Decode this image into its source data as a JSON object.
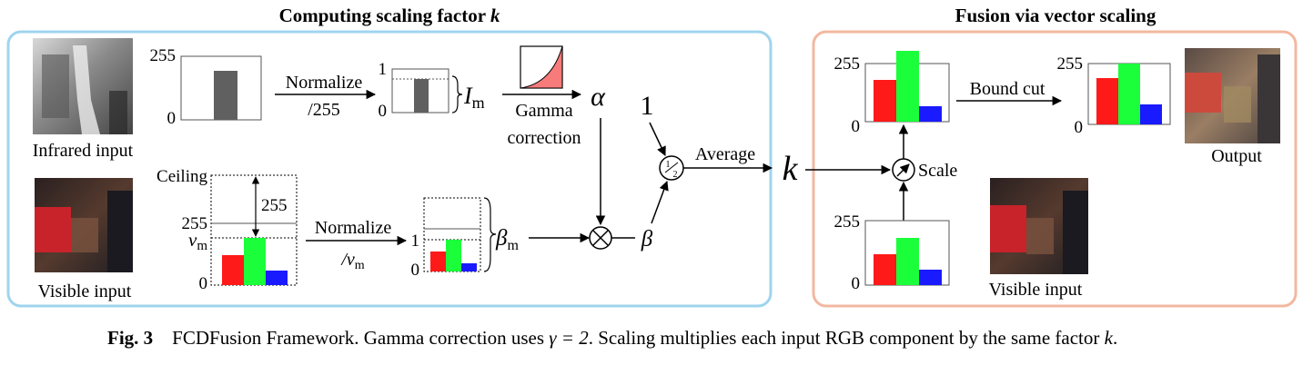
{
  "sections": {
    "left_title": "Computing scaling factor",
    "left_title_var": "k",
    "right_title": "Fusion via vector scaling",
    "left_border_color": "#9fd4ee",
    "right_border_color": "#f2b8a0"
  },
  "inputs": {
    "infrared_label": "Infrared input",
    "visible_label": "Visible input",
    "visible_label_right": "Visible input",
    "output_label": "Output"
  },
  "ticks": {
    "t255": "255",
    "t0": "0",
    "t1": "1",
    "ceiling": "Ceiling",
    "vm": "v",
    "vm_sub": "m"
  },
  "ops": {
    "normalize": "Normalize",
    "div255": "/255",
    "div_vm": "/v",
    "div_vm_sub": "m",
    "gamma": "Gamma",
    "correction": "correction",
    "average": "Average",
    "scale": "Scale",
    "bound_cut": "Bound cut",
    "one": "1",
    "half_num": "1",
    "half_den": "2"
  },
  "symbols": {
    "I": "I",
    "I_sub": "m",
    "alpha": "α",
    "beta": "β",
    "beta_m": "β",
    "beta_m_sub": "m",
    "k": "k",
    "vm_arrow_label": "255"
  },
  "colors": {
    "red": "#ff1a1a",
    "green": "#1aff3a",
    "blue": "#1a1aff",
    "gray_bar": "#606060",
    "gamma_fill": "#f77b7b"
  },
  "caption": {
    "fig": "Fig. 3",
    "text1": "FCDFusion Framework. Gamma correction uses ",
    "gamma_eq": "γ = 2",
    "text2": ". Scaling multiplies each input RGB component by the same factor ",
    "kvar": "k",
    "text3": "."
  }
}
